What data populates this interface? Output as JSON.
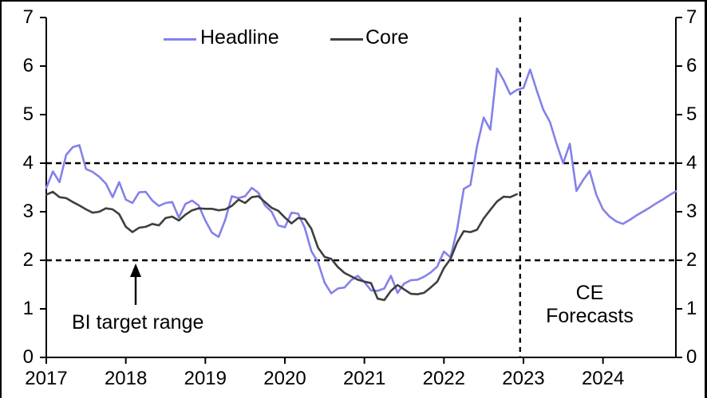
{
  "chart_data": {
    "type": "line",
    "title": "",
    "xlabel": "",
    "ylabel": "",
    "grid": false,
    "legend_position": "top-center",
    "y_axis": {
      "min": 0,
      "max": 7,
      "ticks": [
        0,
        1,
        2,
        3,
        4,
        5,
        6,
        7
      ],
      "mirrored_right": true
    },
    "x_axis": {
      "tick_labels": [
        "2017",
        "2018",
        "2019",
        "2020",
        "2021",
        "2022",
        "2023",
        "2024"
      ],
      "start": "2017-01",
      "frequency": "monthly",
      "total_months": 96
    },
    "series": [
      {
        "name": "Headline",
        "color": "#8481EA",
        "start_month_index": 0,
        "values": [
          3.49,
          3.83,
          3.61,
          4.17,
          4.33,
          4.37,
          3.88,
          3.82,
          3.72,
          3.58,
          3.3,
          3.61,
          3.25,
          3.18,
          3.4,
          3.41,
          3.23,
          3.12,
          3.18,
          3.2,
          2.88,
          3.16,
          3.23,
          3.13,
          2.82,
          2.57,
          2.48,
          2.83,
          3.32,
          3.28,
          3.32,
          3.49,
          3.39,
          3.13,
          3.0,
          2.72,
          2.68,
          2.98,
          2.96,
          2.67,
          2.19,
          1.96,
          1.54,
          1.32,
          1.42,
          1.44,
          1.59,
          1.68,
          1.55,
          1.38,
          1.37,
          1.42,
          1.68,
          1.33,
          1.52,
          1.59,
          1.6,
          1.66,
          1.75,
          1.87,
          2.18,
          2.06,
          2.64,
          3.47,
          3.55,
          4.35,
          4.94,
          4.69,
          5.95,
          5.71,
          5.42,
          5.51,
          5.55,
          5.93,
          5.5,
          5.1,
          4.85,
          4.4,
          4.0,
          4.4,
          3.43,
          3.65,
          3.84,
          3.35,
          3.05,
          2.9,
          2.8,
          2.75,
          2.83,
          2.92,
          3.0,
          3.08,
          3.17,
          3.25,
          3.34,
          3.42
        ]
      },
      {
        "name": "Core",
        "color": "#3E3E3E",
        "start_month_index": 0,
        "values": [
          3.35,
          3.41,
          3.3,
          3.28,
          3.2,
          3.13,
          3.05,
          2.98,
          3.0,
          3.07,
          3.05,
          2.95,
          2.69,
          2.58,
          2.67,
          2.69,
          2.75,
          2.72,
          2.87,
          2.9,
          2.82,
          2.94,
          3.03,
          3.07,
          3.06,
          3.06,
          3.03,
          3.05,
          3.12,
          3.25,
          3.18,
          3.3,
          3.32,
          3.2,
          3.08,
          3.02,
          2.88,
          2.76,
          2.87,
          2.85,
          2.65,
          2.26,
          2.07,
          2.03,
          1.86,
          1.74,
          1.67,
          1.6,
          1.56,
          1.53,
          1.21,
          1.18,
          1.37,
          1.49,
          1.4,
          1.31,
          1.3,
          1.33,
          1.44,
          1.56,
          1.84,
          2.03,
          2.37,
          2.6,
          2.58,
          2.63,
          2.86,
          3.04,
          3.21,
          3.31,
          3.3,
          3.36
        ]
      }
    ],
    "reference_lines": {
      "horizontal_dashed_values": [
        2,
        4
      ],
      "vertical_dashed_month_index": 71.5
    },
    "annotations": {
      "bi_target": "BI target range",
      "ce_forecasts": "CE\nForecasts"
    }
  }
}
